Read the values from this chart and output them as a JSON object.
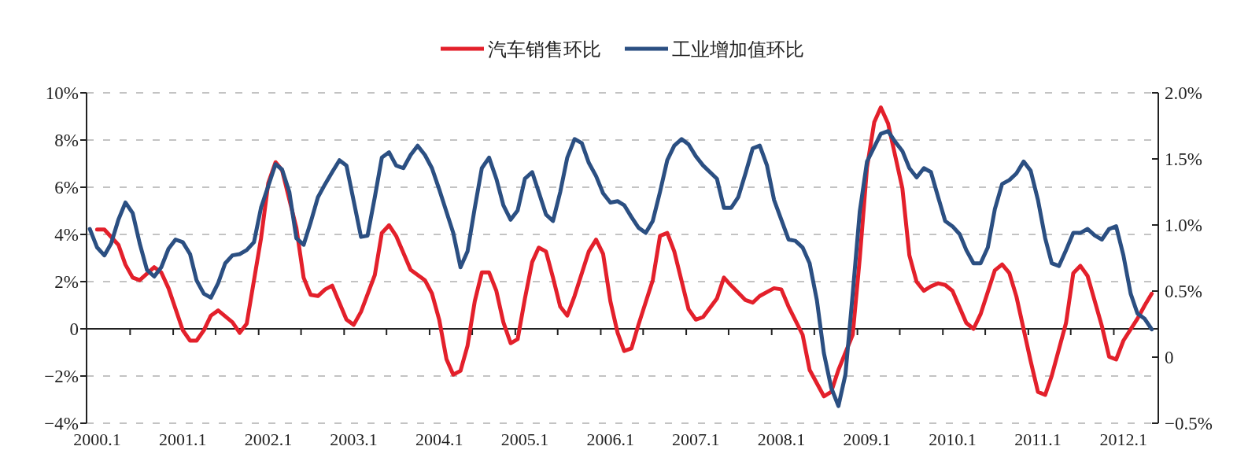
{
  "chart_data": {
    "type": "line",
    "xlim": [
      "1999-11-17",
      "2012-05-29"
    ],
    "xticks": [
      {
        "value": "2000-01",
        "label": "2000.1"
      },
      {
        "value": "2000-05-21",
        "label": null
      },
      {
        "value": "2000-11-21",
        "label": null
      },
      {
        "value": "2001-01",
        "label": "2001.1"
      },
      {
        "value": "2001-05-21",
        "label": null
      },
      {
        "value": "2001-11-21",
        "label": null
      },
      {
        "value": "2002-01",
        "label": "2002.1"
      },
      {
        "value": "2002-05-21",
        "label": null
      },
      {
        "value": "2002-11-21",
        "label": null
      },
      {
        "value": "2003-01",
        "label": "2003.1"
      },
      {
        "value": "2003-05-21",
        "label": null
      },
      {
        "value": "2003-11-21",
        "label": null
      },
      {
        "value": "2004-01",
        "label": "2004.1"
      },
      {
        "value": "2004-05-21",
        "label": null
      },
      {
        "value": "2004-11-21",
        "label": null
      },
      {
        "value": "2005-01",
        "label": "2005.1"
      },
      {
        "value": "2005-05-21",
        "label": null
      },
      {
        "value": "2005-11-21",
        "label": null
      },
      {
        "value": "2006-01",
        "label": "2006.1"
      },
      {
        "value": "2006-05-21",
        "label": null
      },
      {
        "value": "2006-11-21",
        "label": null
      },
      {
        "value": "2007-01",
        "label": "2007.1"
      },
      {
        "value": "2007-05-21",
        "label": null
      },
      {
        "value": "2007-11-21",
        "label": null
      },
      {
        "value": "2008-01",
        "label": "2008.1"
      },
      {
        "value": "2008-05-21",
        "label": null
      },
      {
        "value": "2008-11-21",
        "label": null
      },
      {
        "value": "2009-01",
        "label": "2009.1"
      },
      {
        "value": "2009-05-21",
        "label": null
      },
      {
        "value": "2009-11-21",
        "label": null
      },
      {
        "value": "2010-01",
        "label": "2010.1"
      },
      {
        "value": "2010-05-21",
        "label": null
      },
      {
        "value": "2010-11-21",
        "label": null
      },
      {
        "value": "2011-01",
        "label": "2011.1"
      },
      {
        "value": "2011-05-21",
        "label": null
      },
      {
        "value": "2011-11-21",
        "label": null
      },
      {
        "value": "2012-01",
        "label": "2012.1"
      }
    ],
    "ylim": [
      -4,
      10
    ],
    "yticks": [
      {
        "value": -4,
        "label": "−4%"
      },
      {
        "value": -2,
        "label": "−2%"
      },
      {
        "value": 0,
        "label": "0"
      },
      {
        "value": 2,
        "label": "2%"
      },
      {
        "value": 4,
        "label": "4%"
      },
      {
        "value": 6,
        "label": "6%"
      },
      {
        "value": 8,
        "label": "8%"
      },
      {
        "value": 10,
        "label": "10%"
      }
    ],
    "y2lim": [
      -0.5,
      2.0
    ],
    "y2ticks": [
      {
        "value": -0.5,
        "label": "−0.5%"
      },
      {
        "value": 0,
        "label": "0"
      },
      {
        "value": 0.5,
        "label": "0.5%"
      },
      {
        "value": 1.0,
        "label": "1.0%"
      },
      {
        "value": 1.5,
        "label": "1.5%"
      },
      {
        "value": 2.0,
        "label": "2.0%"
      }
    ],
    "grid": "y",
    "legend": "top",
    "series": [
      {
        "name": "汽车销售环比",
        "color": "#e3202b",
        "x": [
          "2000-01",
          "2000-02",
          "2000-04",
          "2000-05",
          "2000-06",
          "2000-07",
          "2000-09",
          "2000-10",
          "2000-11",
          "2001-01",
          "2001-02",
          "2001-03",
          "2001-04",
          "2001-05",
          "2001-06",
          "2001-08",
          "2001-09",
          "2001-10",
          "2001-12",
          "2002-01",
          "2002-02",
          "2002-03",
          "2002-05",
          "2002-06",
          "2002-07",
          "2002-08",
          "2002-09",
          "2002-10",
          "2002-12",
          "2003-01",
          "2003-02",
          "2003-04",
          "2003-05",
          "2003-06",
          "2003-07",
          "2003-09",
          "2003-11",
          "2003-12",
          "2004-01",
          "2004-02",
          "2004-03",
          "2004-04",
          "2004-05",
          "2004-06",
          "2004-07",
          "2004-08",
          "2004-09",
          "2004-10",
          "2004-11",
          "2004-12",
          "2005-01",
          "2005-02",
          "2005-03",
          "2005-04",
          "2005-05",
          "2005-06",
          "2005-07",
          "2005-08",
          "2005-10",
          "2005-11",
          "2005-12",
          "2006-01",
          "2006-02",
          "2006-03",
          "2006-04",
          "2006-05",
          "2006-07",
          "2006-08",
          "2006-09",
          "2006-10",
          "2006-12",
          "2007-01",
          "2007-02",
          "2007-04",
          "2007-05",
          "2007-06",
          "2007-08",
          "2007-09",
          "2007-10",
          "2007-12",
          "2008-01",
          "2008-02",
          "2008-04",
          "2008-05",
          "2008-07",
          "2008-08",
          "2008-09",
          "2008-11",
          "2008-12",
          "2009-01",
          "2009-02",
          "2009-03",
          "2009-04",
          "2009-06",
          "2009-07",
          "2009-08",
          "2009-09",
          "2009-10",
          "2009-11",
          "2009-12",
          "2010-01",
          "2010-03",
          "2010-04",
          "2010-05",
          "2010-07",
          "2010-08",
          "2010-09",
          "2010-10",
          "2010-12",
          "2011-01",
          "2011-02",
          "2011-03",
          "2011-05",
          "2011-06",
          "2011-07",
          "2011-08",
          "2011-10",
          "2011-11",
          "2011-12",
          "2012-01",
          "2012-03",
          "2012-04",
          "2012-05"
        ],
        "values": [
          4.21,
          4.21,
          3.56,
          2.72,
          2.17,
          2.06,
          2.61,
          2.39,
          1.72,
          -0.06,
          -0.5,
          -0.5,
          -0.06,
          0.56,
          0.78,
          0.28,
          -0.17,
          0.22,
          3.83,
          6.17,
          7.06,
          6.72,
          4.28,
          2.17,
          1.44,
          1.39,
          1.67,
          1.83,
          0.39,
          0.17,
          0.72,
          2.28,
          4.06,
          4.39,
          3.94,
          2.5,
          2.06,
          1.5,
          0.39,
          -1.28,
          -1.94,
          -1.78,
          -0.72,
          1.17,
          2.39,
          2.39,
          1.61,
          0.28,
          -0.61,
          -0.44,
          1.28,
          2.83,
          3.44,
          3.28,
          2.17,
          0.94,
          0.56,
          1.39,
          3.28,
          3.78,
          3.17,
          1.17,
          -0.17,
          -0.94,
          -0.83,
          0.17,
          2.06,
          3.94,
          4.06,
          3.28,
          0.83,
          0.39,
          0.5,
          1.28,
          2.17,
          1.83,
          1.22,
          1.11,
          1.39,
          1.72,
          1.67,
          0.94,
          -0.25,
          -1.74,
          -2.86,
          -2.67,
          -1.74,
          -0.25,
          2.98,
          6.83,
          8.76,
          9.38,
          8.7,
          5.96,
          3.11,
          1.99,
          1.61,
          1.8,
          1.93,
          1.86,
          1.61,
          0.25,
          0,
          0.62,
          2.48,
          2.73,
          2.36,
          1.37,
          -1.37,
          -2.67,
          -2.8,
          -1.99,
          0.25,
          2.36,
          2.67,
          2.24,
          0.12,
          -1.18,
          -1.3,
          -0.5,
          0.43,
          0.99,
          1.49
        ]
      },
      {
        "name": "工业增加值环比",
        "color": "#2b4f82",
        "axis": "y2",
        "x": [
          "1999-12",
          "2000-01",
          "2000-02",
          "2000-03",
          "2000-04",
          "2000-05",
          "2000-06",
          "2000-07",
          "2000-08",
          "2000-09",
          "2000-10",
          "2000-11",
          "2000-12",
          "2001-01",
          "2001-02",
          "2001-03",
          "2001-04",
          "2001-05",
          "2001-06",
          "2001-07",
          "2001-08",
          "2001-09",
          "2001-10",
          "2001-11",
          "2001-12",
          "2002-02",
          "2002-03",
          "2002-04",
          "2002-05",
          "2002-06",
          "2002-07",
          "2002-08",
          "2002-09",
          "2002-10",
          "2002-11",
          "2002-12",
          "2003-02",
          "2003-03",
          "2003-04",
          "2003-05",
          "2003-06",
          "2003-07",
          "2003-08",
          "2003-09",
          "2003-10",
          "2003-11",
          "2003-12",
          "2004-01",
          "2004-03",
          "2004-04",
          "2004-05",
          "2004-06",
          "2004-07",
          "2004-08",
          "2004-09",
          "2004-10",
          "2004-11",
          "2004-12",
          "2005-01",
          "2005-02",
          "2005-03",
          "2005-04",
          "2005-05",
          "2005-06",
          "2005-07",
          "2005-08",
          "2005-09",
          "2005-10",
          "2005-11",
          "2005-12",
          "2006-01",
          "2006-02",
          "2006-03",
          "2006-04",
          "2006-05",
          "2006-06",
          "2006-07",
          "2006-08",
          "2006-09",
          "2006-10",
          "2006-11",
          "2006-12",
          "2007-01",
          "2007-02",
          "2007-04",
          "2007-05",
          "2007-06",
          "2007-07",
          "2007-08",
          "2007-09",
          "2007-10",
          "2007-11",
          "2007-12",
          "2008-02",
          "2008-03",
          "2008-04",
          "2008-05",
          "2008-06",
          "2008-07",
          "2008-08",
          "2008-09",
          "2008-10",
          "2008-11",
          "2008-12",
          "2009-01",
          "2009-02",
          "2009-03",
          "2009-04",
          "2009-05",
          "2009-06",
          "2009-07",
          "2009-08",
          "2009-09",
          "2009-10",
          "2009-11",
          "2009-12",
          "2010-01",
          "2010-02",
          "2010-03",
          "2010-04",
          "2010-05",
          "2010-06",
          "2010-07",
          "2010-08",
          "2010-09",
          "2010-10",
          "2010-11",
          "2010-12",
          "2011-01",
          "2011-02",
          "2011-03",
          "2011-04",
          "2011-05",
          "2011-06",
          "2011-07",
          "2011-08",
          "2011-09",
          "2011-10",
          "2011-11",
          "2011-12",
          "2012-01",
          "2012-02",
          "2012-03",
          "2012-04",
          "2012-05"
        ],
        "values": [
          0.97,
          0.83,
          0.77,
          0.86,
          1.04,
          1.17,
          1.09,
          0.86,
          0.66,
          0.61,
          0.68,
          0.82,
          0.89,
          0.87,
          0.78,
          0.58,
          0.48,
          0.45,
          0.56,
          0.71,
          0.77,
          0.78,
          0.81,
          0.87,
          1.13,
          1.46,
          1.42,
          1.25,
          0.9,
          0.85,
          1.02,
          1.21,
          1.31,
          1.4,
          1.49,
          1.45,
          0.91,
          0.92,
          1.21,
          1.51,
          1.55,
          1.45,
          1.43,
          1.53,
          1.6,
          1.53,
          1.43,
          1.27,
          0.94,
          0.68,
          0.8,
          1.13,
          1.43,
          1.51,
          1.35,
          1.15,
          1.04,
          1.11,
          1.35,
          1.4,
          1.25,
          1.08,
          1.03,
          1.25,
          1.51,
          1.65,
          1.62,
          1.47,
          1.37,
          1.24,
          1.17,
          1.18,
          1.15,
          1.06,
          0.98,
          0.94,
          1.03,
          1.25,
          1.49,
          1.6,
          1.65,
          1.61,
          1.52,
          1.45,
          1.35,
          1.13,
          1.13,
          1.21,
          1.39,
          1.58,
          1.6,
          1.45,
          1.19,
          0.89,
          0.88,
          0.83,
          0.71,
          0.43,
          0.03,
          -0.23,
          -0.37,
          -0.13,
          0.48,
          1.1,
          1.48,
          1.59,
          1.69,
          1.71,
          1.63,
          1.56,
          1.43,
          1.36,
          1.43,
          1.4,
          1.21,
          1.03,
          0.99,
          0.93,
          0.81,
          0.71,
          0.71,
          0.83,
          1.12,
          1.31,
          1.34,
          1.39,
          1.48,
          1.41,
          1.19,
          0.9,
          0.71,
          0.69,
          0.81,
          0.94,
          0.94,
          0.97,
          0.92,
          0.89,
          0.97,
          0.99,
          0.77,
          0.48,
          0.33,
          0.29,
          0.21
        ]
      }
    ]
  }
}
